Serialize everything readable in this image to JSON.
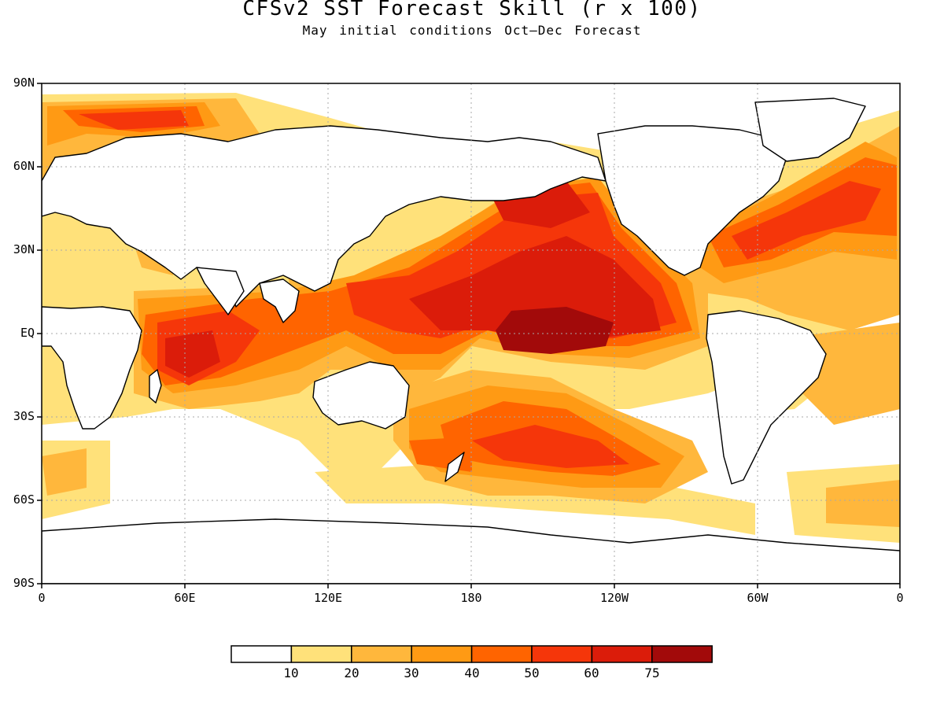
{
  "title": "CFSv2 SST Forecast Skill (r x 100)",
  "subtitle": "May initial conditions  Oct—Dec Forecast",
  "y_ticks": [
    "90N",
    "60N",
    "30N",
    "EQ",
    "30S",
    "60S",
    "90S"
  ],
  "x_ticks": [
    "0",
    "60E",
    "120E",
    "180",
    "120W",
    "60W",
    "0"
  ],
  "colorbar": {
    "labels": [
      "10",
      "20",
      "30",
      "40",
      "50",
      "60",
      "75"
    ],
    "colors": [
      "#ffffff",
      "#ffe17a",
      "#ffb73c",
      "#ff9a14",
      "#ff6400",
      "#f5360a",
      "#db1c0a",
      "#a20a0a"
    ]
  },
  "palette": {
    "land": "#ffffff",
    "c1": "#ffe17a",
    "c2": "#ffb73c",
    "c3": "#ff9a14",
    "c4": "#ff6400",
    "c5": "#f5360a",
    "c6": "#db1c0a",
    "c7": "#a20a0a"
  }
}
